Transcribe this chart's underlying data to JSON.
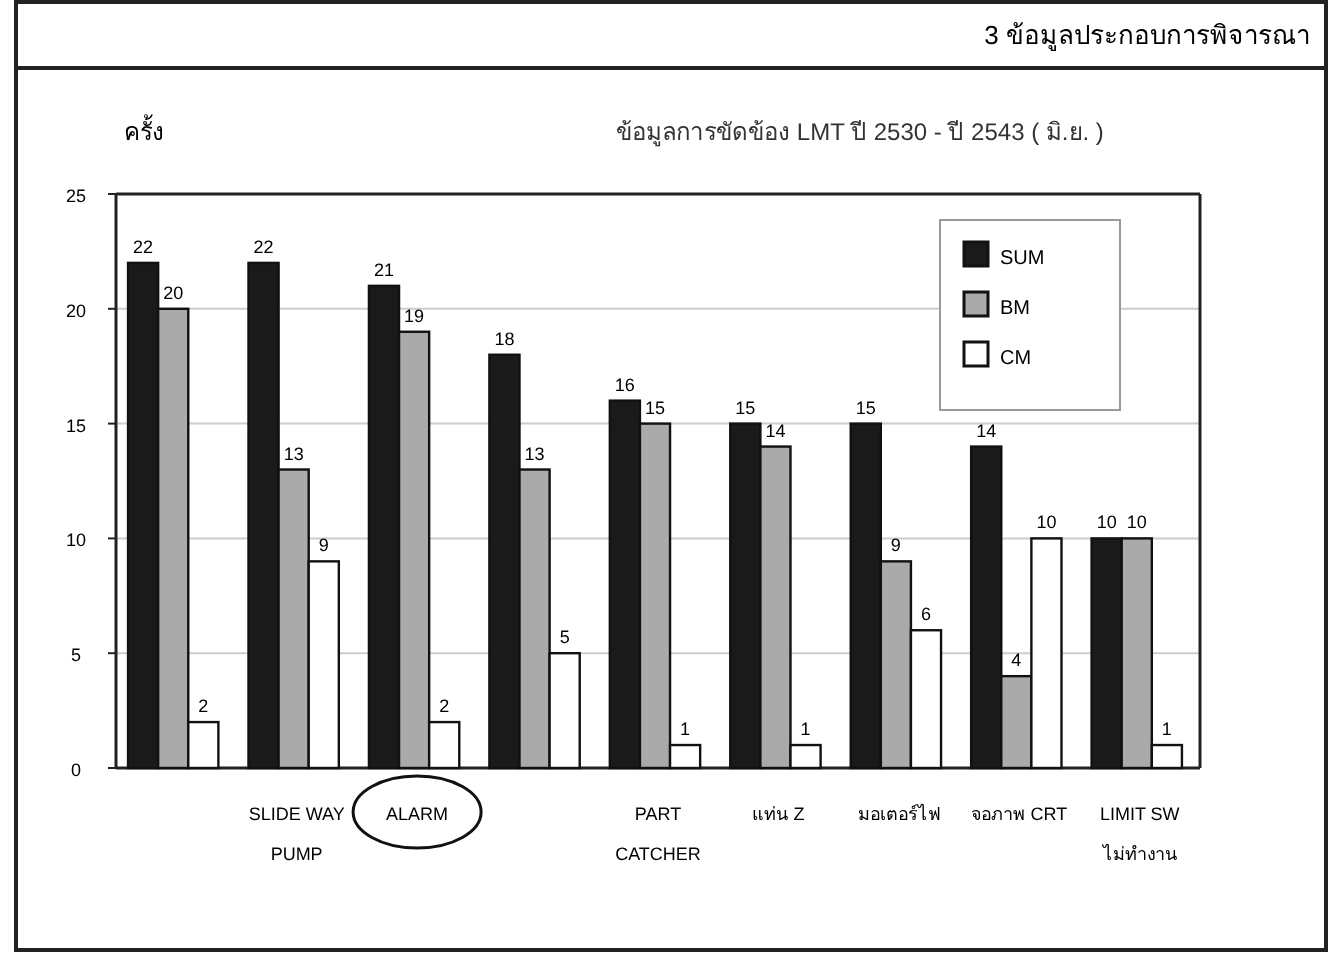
{
  "chart_data": {
    "type": "bar",
    "title": "ข้อมูลการขัดข้อง LMT ปี 2530 - ปี 2543 ( มิ.ย. )",
    "ylabel": "ครั้ง",
    "annotations": [
      "3  ข้อมูลประกอบการพิจารณา"
    ],
    "categories": [
      null,
      "SLIDE WAY PUMP",
      "ALARM",
      null,
      "PART CATCHER",
      "แท่น Z",
      "มอเตอร์ไฟ",
      "จอภาพ CRT",
      "LIMIT SW ไม่ทำงาน"
    ],
    "series": [
      {
        "name": "SUM",
        "color": "#1a1a1a",
        "values": [
          22,
          22,
          21,
          18,
          16,
          15,
          15,
          14,
          10
        ]
      },
      {
        "name": "BM",
        "color": "#aaaaaa",
        "values": [
          20,
          13,
          19,
          13,
          15,
          14,
          9,
          4,
          10
        ]
      },
      {
        "name": "CM",
        "color": "#ffffff",
        "values": [
          2,
          9,
          2,
          5,
          1,
          1,
          6,
          10,
          1
        ]
      }
    ],
    "ylim": [
      0,
      25
    ],
    "yticks": [
      0,
      5,
      10,
      15,
      20,
      25
    ],
    "grid": "y",
    "legend": "top right",
    "data_labels": true
  }
}
